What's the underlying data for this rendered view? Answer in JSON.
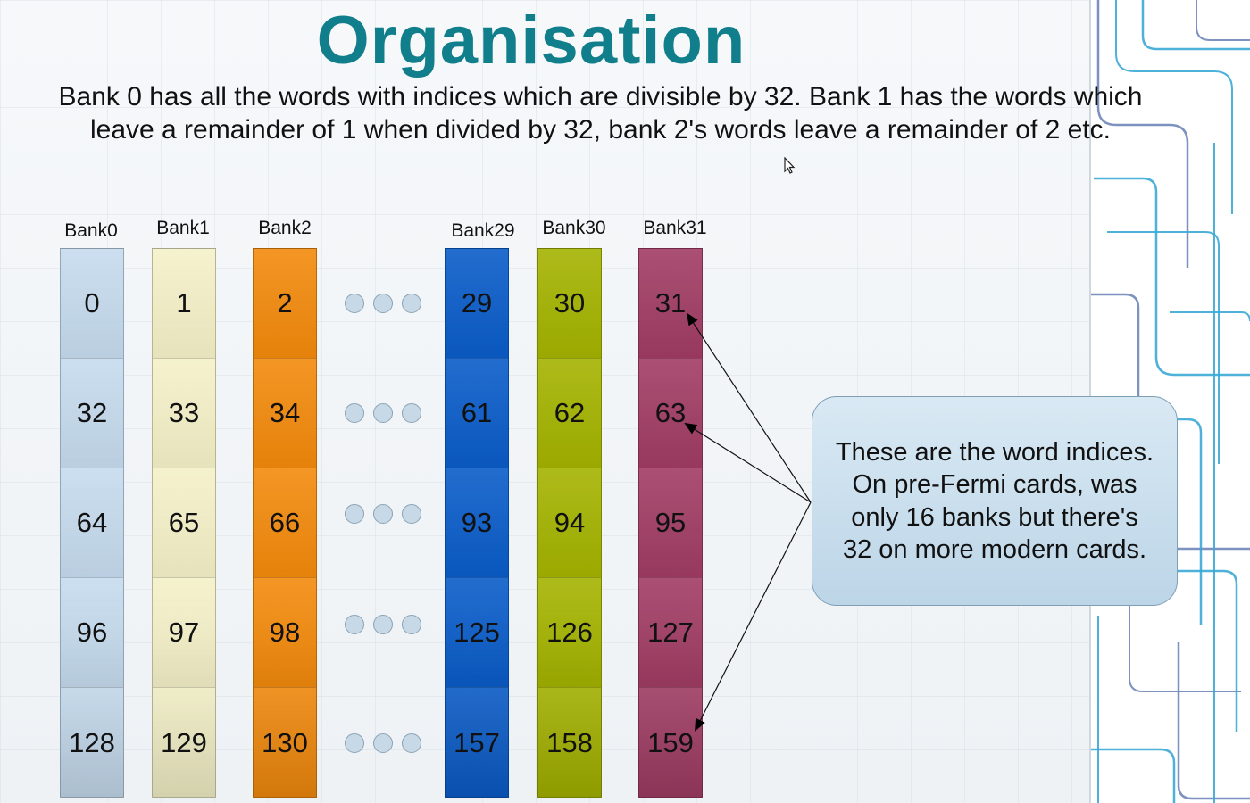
{
  "title": "Organisation",
  "description": "Bank 0 has all the words with indices which are divisible by 32. Bank 1 has the words which leave a remainder of 1 when divided by 32, bank 2's words leave a remainder of 2 etc.",
  "banks": [
    {
      "label": "Bank0",
      "color": "#c5dbee",
      "values": [
        "0",
        "32",
        "64",
        "96",
        "128"
      ]
    },
    {
      "label": "Bank1",
      "color": "#f4f1c8",
      "values": [
        "1",
        "33",
        "65",
        "97",
        "129"
      ]
    },
    {
      "label": "Bank2",
      "color": "#f38a0c",
      "values": [
        "2",
        "34",
        "66",
        "98",
        "130"
      ]
    },
    {
      "label": "Bank29",
      "color": "#0a5cc9",
      "values": [
        "29",
        "61",
        "93",
        "125",
        "157"
      ]
    },
    {
      "label": "Bank30",
      "color": "#a4b300",
      "values": [
        "30",
        "62",
        "94",
        "126",
        "158"
      ]
    },
    {
      "label": "Bank31",
      "color": "#a13c64",
      "values": [
        "31",
        "63",
        "95",
        "127",
        "159"
      ]
    }
  ],
  "callout": "These are the word indices. On pre-Fermi cards, was only 16 banks but there's 32 on more modern cards.",
  "colors": {
    "title": "#117e8c",
    "circuit": "#3aa9d6"
  }
}
